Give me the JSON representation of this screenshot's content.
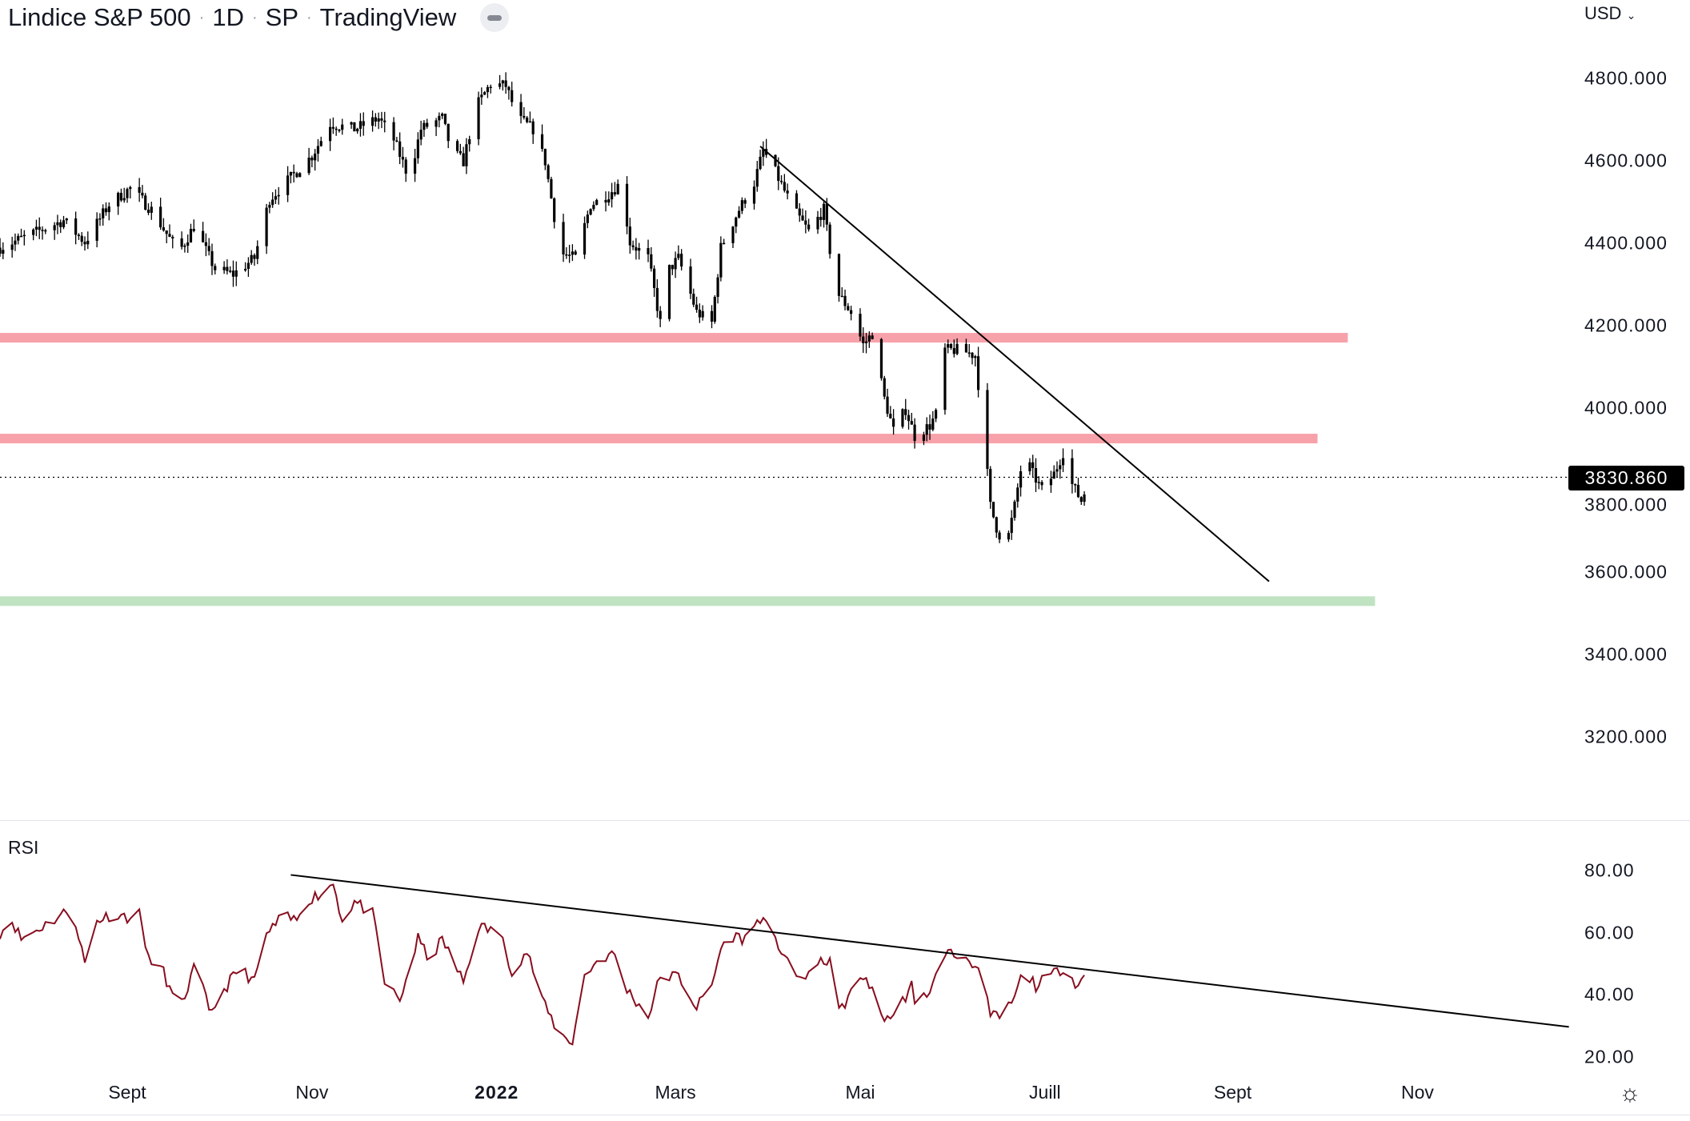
{
  "header": {
    "symbol": "Lindice S&P 500",
    "interval": "1D",
    "exchange": "SP",
    "source": "TradingView",
    "currency": "USD"
  },
  "last_price": "3830.860",
  "rsi_label": "RSI",
  "colors": {
    "candle": "#000000",
    "resistance": "#f7a1aa",
    "support": "#c0e3c2",
    "rsi": "#880e1f",
    "trendline": "#000000"
  },
  "chart_data": [
    {
      "type": "candlestick",
      "title": "Lindice S&P 500 · 1D · SP",
      "x_unit": "days from 1 Sept 2021",
      "ylim": [
        3050,
        4900
      ],
      "yticks": [
        "4800.000",
        "4600.000",
        "4400.000",
        "4200.000",
        "4000.000",
        "3800.000",
        "3600.000",
        "3400.000",
        "3200.000"
      ],
      "ytick_values": [
        4800,
        4600,
        4400,
        4200,
        4000,
        3800,
        3600,
        3400,
        3200
      ],
      "xticks": [
        {
          "label": "Sept",
          "day": 0,
          "bold": false
        },
        {
          "label": "Nov",
          "day": 61,
          "bold": false
        },
        {
          "label": "2022",
          "day": 122,
          "bold": true
        },
        {
          "label": "Mars",
          "day": 181,
          "bold": false
        },
        {
          "label": "Mai",
          "day": 242,
          "bold": false
        },
        {
          "label": "Juill",
          "day": 303,
          "bold": false
        },
        {
          "label": "Sept",
          "day": 365,
          "bold": false
        },
        {
          "label": "Nov",
          "day": 426,
          "bold": false
        }
      ],
      "close_keypoints": [
        [
          -42,
          4389
        ],
        [
          -21,
          4455
        ],
        [
          -14,
          4402
        ],
        [
          -6,
          4494
        ],
        [
          1,
          4533
        ],
        [
          8,
          4481
        ],
        [
          17,
          4376
        ],
        [
          22,
          4441
        ],
        [
          29,
          4337
        ],
        [
          35,
          4324
        ],
        [
          42,
          4363
        ],
        [
          47,
          4507
        ],
        [
          54,
          4559
        ],
        [
          61,
          4612
        ],
        [
          67,
          4690
        ],
        [
          75,
          4677
        ],
        [
          83,
          4703
        ],
        [
          88,
          4651
        ],
        [
          93,
          4559
        ],
        [
          97,
          4677
        ],
        [
          104,
          4703
        ],
        [
          107,
          4625
        ],
        [
          111,
          4598
        ],
        [
          115,
          4729
        ],
        [
          120,
          4787
        ],
        [
          125,
          4782
        ],
        [
          129,
          4703
        ],
        [
          134,
          4677
        ],
        [
          138,
          4598
        ],
        [
          143,
          4376
        ],
        [
          148,
          4363
        ],
        [
          153,
          4494
        ],
        [
          157,
          4507
        ],
        [
          163,
          4546
        ],
        [
          166,
          4402
        ],
        [
          172,
          4363
        ],
        [
          176,
          4206
        ],
        [
          179,
          4337
        ],
        [
          182,
          4363
        ],
        [
          188,
          4232
        ],
        [
          193,
          4206
        ],
        [
          196,
          4389
        ],
        [
          202,
          4481
        ],
        [
          207,
          4546
        ],
        [
          210,
          4625
        ],
        [
          214,
          4572
        ],
        [
          220,
          4481
        ],
        [
          225,
          4428
        ],
        [
          230,
          4481
        ],
        [
          234,
          4284
        ],
        [
          239,
          4232
        ],
        [
          243,
          4153
        ],
        [
          246,
          4180
        ],
        [
          250,
          4022
        ],
        [
          253,
          3944
        ],
        [
          257,
          3996
        ],
        [
          260,
          3931
        ],
        [
          265,
          3957
        ],
        [
          268,
          3996
        ],
        [
          270,
          4140
        ],
        [
          275,
          4140
        ],
        [
          280,
          4127
        ],
        [
          283,
          3918
        ],
        [
          285,
          3761
        ],
        [
          287,
          3709
        ],
        [
          290,
          3656
        ],
        [
          293,
          3761
        ],
        [
          296,
          3892
        ],
        [
          299,
          3839
        ],
        [
          302,
          3800
        ],
        [
          306,
          3839
        ],
        [
          309,
          3892
        ],
        [
          312,
          3813
        ],
        [
          315,
          3774
        ],
        [
          318,
          3830.86
        ]
      ],
      "horizontal_zones": [
        {
          "kind": "resistance",
          "price": 4170,
          "end_day": 403
        },
        {
          "kind": "resistance",
          "price": 3925,
          "end_day": 393
        },
        {
          "kind": "support",
          "price": 3530,
          "end_day": 412
        }
      ],
      "trendline": [
        [
          209,
          4635
        ],
        [
          377,
          3578
        ]
      ]
    },
    {
      "type": "line",
      "title": "RSI",
      "ylim": [
        15,
        90
      ],
      "yticks": [
        "80.00",
        "60.00",
        "40.00",
        "20.00"
      ],
      "ytick_values": [
        80,
        60,
        40,
        20
      ],
      "points": [
        [
          -42,
          60
        ],
        [
          -38,
          64
        ],
        [
          -35,
          58
        ],
        [
          -28,
          62
        ],
        [
          -18,
          68
        ],
        [
          -14,
          50
        ],
        [
          -10,
          64
        ],
        [
          -5,
          66
        ],
        [
          1,
          65
        ],
        [
          4,
          66
        ],
        [
          8,
          48
        ],
        [
          11,
          50
        ],
        [
          17,
          34
        ],
        [
          23,
          51
        ],
        [
          27,
          34
        ],
        [
          33,
          43
        ],
        [
          37,
          49
        ],
        [
          42,
          44
        ],
        [
          45,
          58
        ],
        [
          51,
          65
        ],
        [
          56,
          64
        ],
        [
          58,
          70
        ],
        [
          65,
          73
        ],
        [
          68,
          76
        ],
        [
          71,
          64
        ],
        [
          75,
          70
        ],
        [
          81,
          66
        ],
        [
          85,
          44
        ],
        [
          90,
          38
        ],
        [
          93,
          48
        ],
        [
          96,
          58
        ],
        [
          100,
          51
        ],
        [
          104,
          58
        ],
        [
          111,
          44
        ],
        [
          116,
          62
        ],
        [
          123,
          60
        ],
        [
          127,
          48
        ],
        [
          132,
          54
        ],
        [
          138,
          36
        ],
        [
          143,
          27
        ],
        [
          147,
          25
        ],
        [
          151,
          46
        ],
        [
          156,
          52
        ],
        [
          161,
          53
        ],
        [
          164,
          43
        ],
        [
          172,
          33
        ],
        [
          176,
          46
        ],
        [
          182,
          46
        ],
        [
          188,
          36
        ],
        [
          193,
          43
        ],
        [
          196,
          55
        ],
        [
          200,
          59
        ],
        [
          204,
          58
        ],
        [
          209,
          65
        ],
        [
          214,
          57
        ],
        [
          218,
          52
        ],
        [
          221,
          44
        ],
        [
          226,
          48
        ],
        [
          232,
          52
        ],
        [
          235,
          34
        ],
        [
          239,
          41
        ],
        [
          244,
          46
        ],
        [
          249,
          33
        ],
        [
          253,
          33
        ],
        [
          259,
          43
        ],
        [
          260,
          36
        ],
        [
          266,
          43
        ],
        [
          270,
          54
        ],
        [
          275,
          52
        ],
        [
          278,
          52
        ],
        [
          282,
          46
        ],
        [
          285,
          33
        ],
        [
          289,
          33
        ],
        [
          293,
          39
        ],
        [
          296,
          48
        ],
        [
          300,
          43
        ],
        [
          305,
          46
        ],
        [
          309,
          49
        ],
        [
          314,
          43
        ],
        [
          317,
          48
        ]
      ],
      "trendline": [
        [
          54,
          78.6
        ],
        [
          476,
          29.7
        ]
      ]
    }
  ]
}
